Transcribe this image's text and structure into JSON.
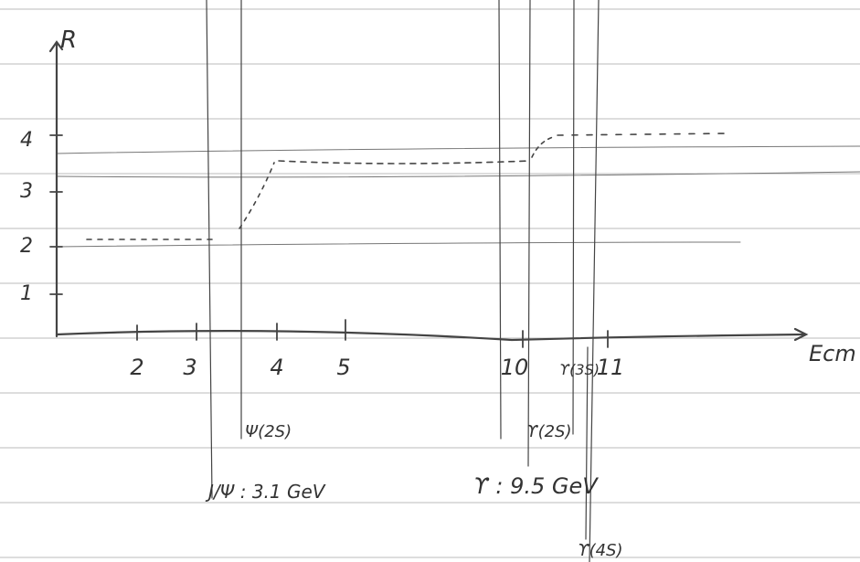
{
  "axes": {
    "y_label": "R",
    "x_label": "Ecm",
    "y_tick_labels": [
      "1",
      "2",
      "3",
      "4"
    ],
    "x_tick_labels": [
      "2",
      "3",
      "4",
      "5",
      "10",
      "11"
    ]
  },
  "resonances": [
    {
      "label": "J/Ψ : 3.1 GeV"
    },
    {
      "label": "Ψ(2S)"
    },
    {
      "label": "ϒ : 9.5 GeV"
    },
    {
      "label": "ϒ(2S)"
    },
    {
      "label": "ϒ(3S)"
    },
    {
      "label": "ϒ(4S)"
    }
  ]
}
